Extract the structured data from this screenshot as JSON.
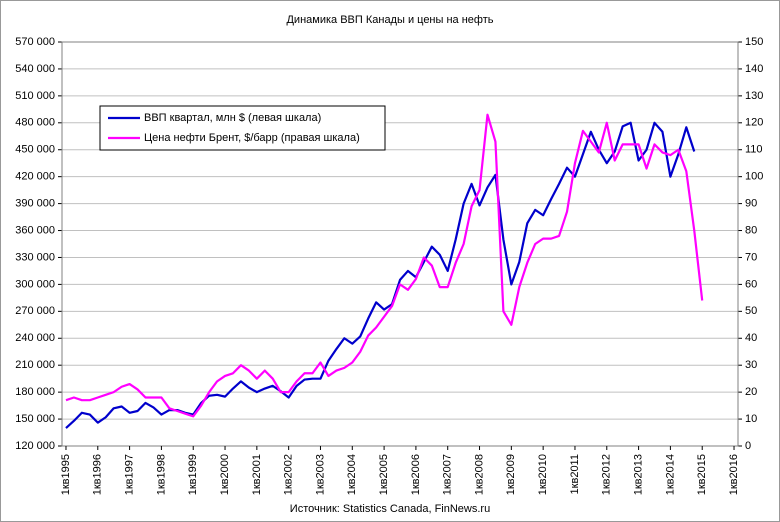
{
  "chart_data": {
    "type": "line",
    "title": "Динамика ВВП Канады и цены на нефть",
    "source": "Источник: Statistics Canada, FinNews.ru",
    "categories": [
      "1кв1995",
      null,
      null,
      null,
      "1кв1996",
      null,
      null,
      null,
      "1кв1997",
      null,
      null,
      null,
      "1кв1998",
      null,
      null,
      null,
      "1кв1999",
      null,
      null,
      null,
      "1кв2000",
      null,
      null,
      null,
      "1кв2001",
      null,
      null,
      null,
      "1кв2002",
      null,
      null,
      null,
      "1кв2003",
      null,
      null,
      null,
      "1кв2004",
      null,
      null,
      null,
      "1кв2005",
      null,
      null,
      null,
      "1кв2006",
      null,
      null,
      null,
      "1кв2007",
      null,
      null,
      null,
      "1кв2008",
      null,
      null,
      null,
      "1кв2009",
      null,
      null,
      null,
      "1кв2010",
      null,
      null,
      null,
      "1кв2011",
      null,
      null,
      null,
      "1кв2012",
      null,
      null,
      null,
      "1кв2013",
      null,
      null,
      null,
      "1кв2014",
      null,
      null,
      null,
      "1кв2015",
      null,
      null,
      null,
      "1кв2016"
    ],
    "series": [
      {
        "name": "ВВП квартал, млн $ (левая шкала)",
        "color": "#0000cc",
        "axis": "y",
        "values": [
          140000,
          148000,
          157000,
          155000,
          146000,
          152000,
          162000,
          164000,
          157000,
          159000,
          168000,
          163000,
          155000,
          160000,
          160000,
          157000,
          155000,
          168000,
          176000,
          177000,
          175000,
          184000,
          192000,
          185000,
          180000,
          184000,
          187000,
          181000,
          174000,
          187000,
          194000,
          195000,
          195000,
          215000,
          228000,
          240000,
          234000,
          242000,
          262000,
          280000,
          272000,
          278000,
          305000,
          315000,
          308000,
          325000,
          342000,
          333000,
          315000,
          350000,
          390000,
          412000,
          388000,
          408000,
          422000,
          350000,
          300000,
          325000,
          368000,
          383000,
          377000,
          395000,
          412000,
          430000,
          420000,
          445000,
          470000,
          450000,
          435000,
          448000,
          476000,
          480000,
          438000,
          450000,
          480000,
          470000,
          420000,
          445000,
          475000,
          448000,
          null,
          null,
          null,
          null,
          null
        ]
      },
      {
        "name": "Цена нефти Брент, $/барр (правая шкала)",
        "color": "#ff00ff",
        "axis": "y2",
        "values": [
          17,
          18,
          17,
          17,
          18,
          19,
          20,
          22,
          23,
          21,
          18,
          18,
          18,
          14,
          13,
          12,
          11,
          15,
          20,
          24,
          26,
          27,
          30,
          28,
          25,
          28,
          25,
          20,
          20,
          24,
          27,
          27,
          31,
          26,
          28,
          29,
          31,
          35,
          41,
          44,
          48,
          52,
          60,
          58,
          62,
          70,
          67,
          59,
          59,
          68,
          75,
          89,
          95,
          123,
          113,
          50,
          45,
          59,
          68,
          75,
          77,
          77,
          78,
          87,
          105,
          117,
          113,
          109,
          120,
          106,
          112,
          112,
          112,
          103,
          112,
          109,
          108,
          110,
          102,
          80,
          54,
          null,
          null,
          null,
          null
        ]
      }
    ],
    "ylim": [
      120000,
      570000
    ],
    "yticks": [
      {
        "value": 120000,
        "label": "120 000"
      },
      {
        "value": 150000,
        "label": "150 000"
      },
      {
        "value": 180000,
        "label": "180 000"
      },
      {
        "value": 210000,
        "label": "210 000"
      },
      {
        "value": 240000,
        "label": "240 000"
      },
      {
        "value": 270000,
        "label": "270 000"
      },
      {
        "value": 300000,
        "label": "300 000"
      },
      {
        "value": 330000,
        "label": "330 000"
      },
      {
        "value": 360000,
        "label": "360 000"
      },
      {
        "value": 390000,
        "label": "390 000"
      },
      {
        "value": 420000,
        "label": "420 000"
      },
      {
        "value": 450000,
        "label": "450 000"
      },
      {
        "value": 480000,
        "label": "480 000"
      },
      {
        "value": 510000,
        "label": "510 000"
      },
      {
        "value": 540000,
        "label": "540 000"
      },
      {
        "value": 570000,
        "label": "570 000"
      }
    ],
    "y2lim": [
      0,
      150
    ],
    "y2ticks": [
      0,
      10,
      20,
      30,
      40,
      50,
      60,
      70,
      80,
      90,
      100,
      110,
      120,
      130,
      140,
      150
    ],
    "grid": true,
    "legend": "upper left"
  }
}
